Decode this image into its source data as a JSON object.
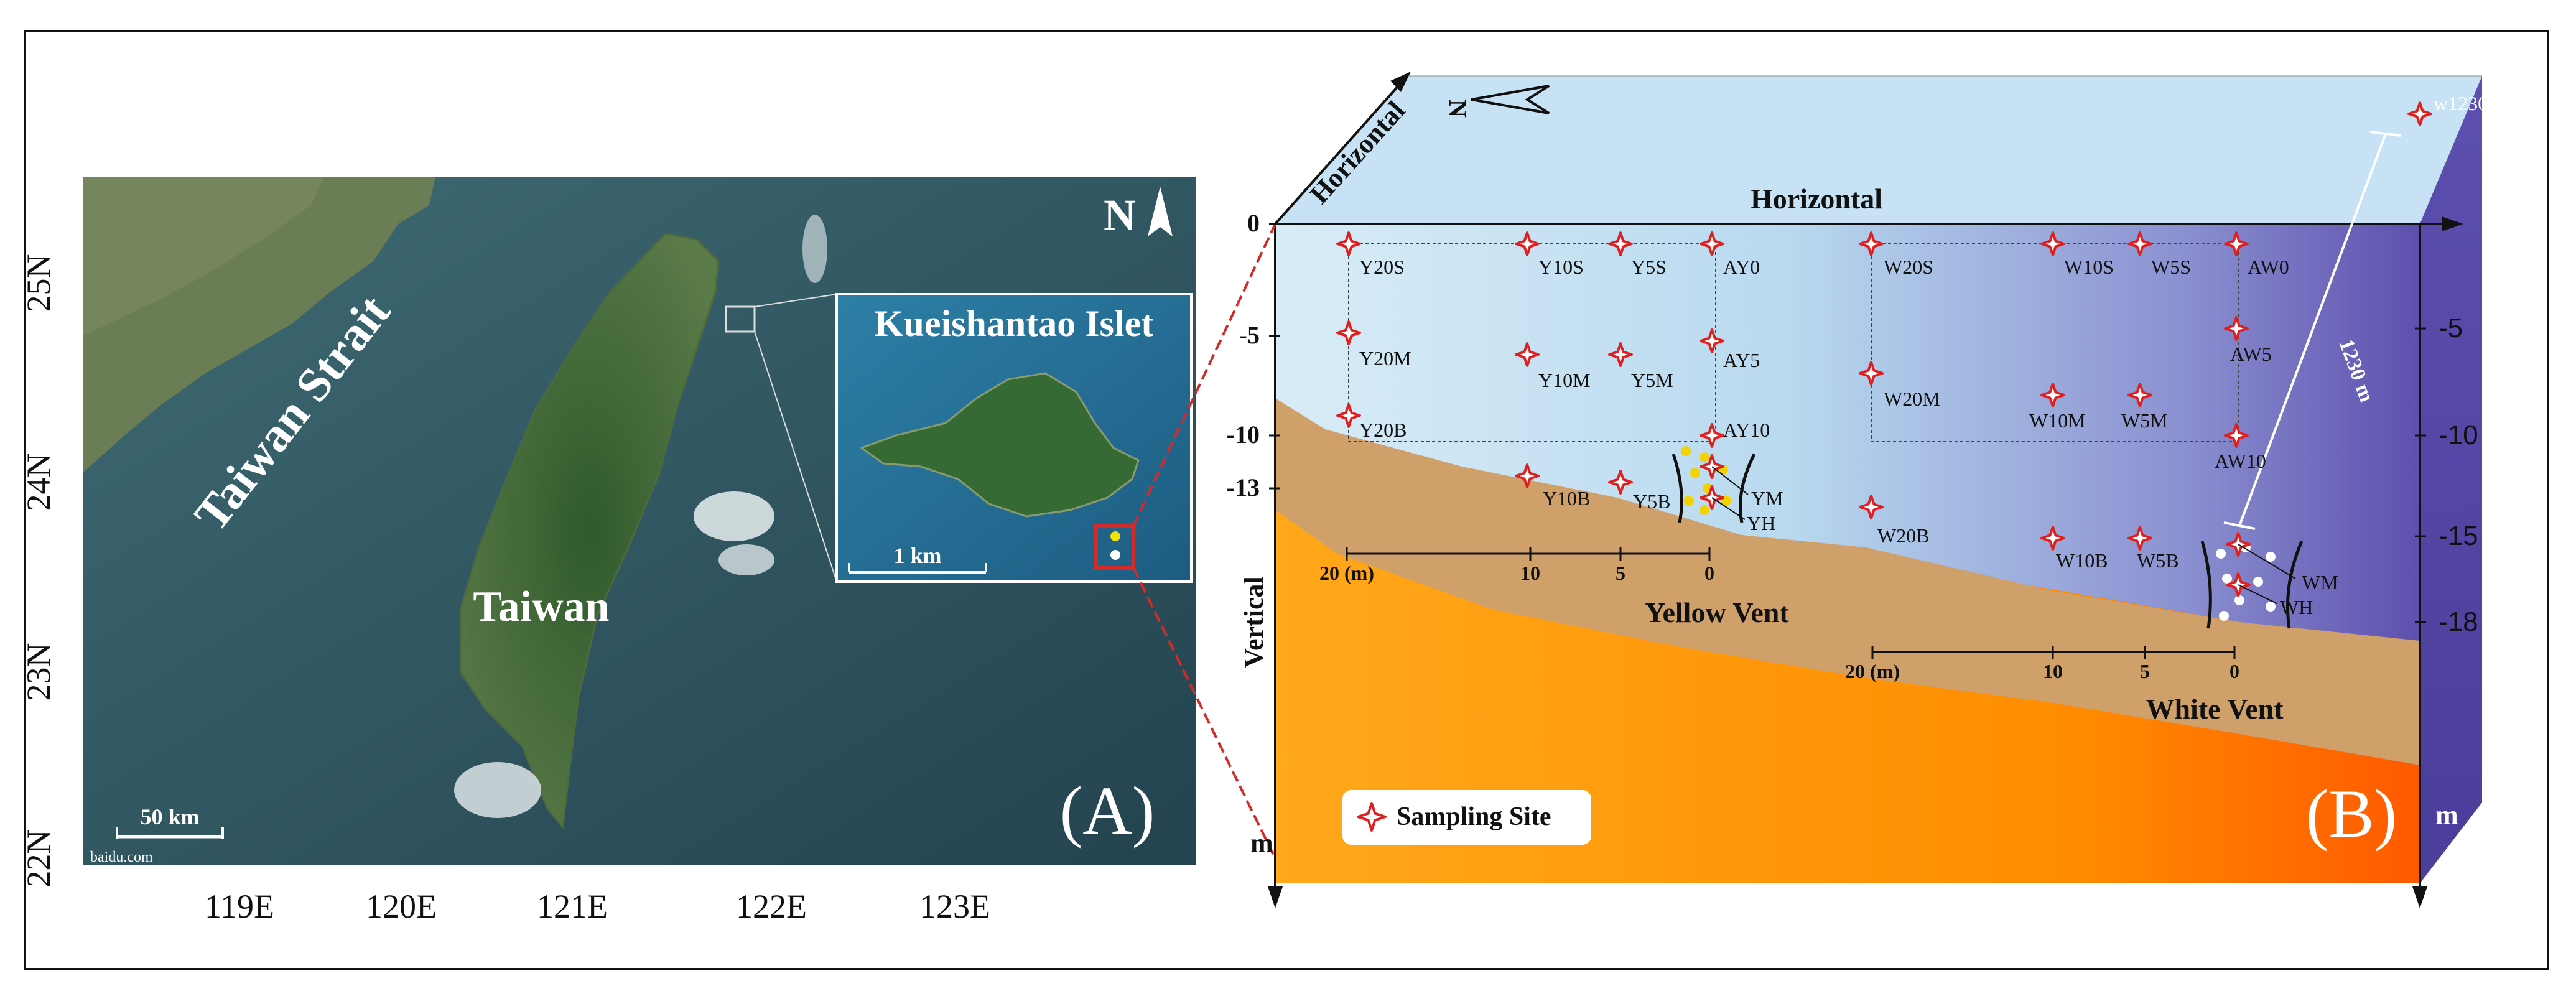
{
  "panel_a": {
    "label": "(A)",
    "north": "N",
    "lat_labels": [
      "25N",
      "24N",
      "23N",
      "22N"
    ],
    "lon_labels": [
      "119E",
      "120E",
      "121E",
      "122E",
      "123E"
    ],
    "strait": "Taiwan Strait",
    "island": "Taiwan",
    "inset_title": "Kueishantao Islet",
    "inset_scale": "1 km",
    "scale": "50 km",
    "source": "baidu.com",
    "colors": {
      "sea": "#2e5561",
      "land": "#3d6a38",
      "frame": "#d42a2a",
      "vent_yellow": "#f2e200"
    }
  },
  "panel_b": {
    "label": "(B)",
    "north": "N",
    "horizontal_axis": "Horizontal",
    "horizontal_diag": "Horizontal",
    "vertical_axis": "Vertical",
    "unit_left": "m",
    "unit_right": "m",
    "left_depths": [
      "0",
      "-5",
      "-10",
      "-13"
    ],
    "right_depths": [
      "-5",
      "-10",
      "-15",
      "-18"
    ],
    "distance_1230": "1230 m",
    "yellow_vent": "Yellow Vent",
    "white_vent": "White Vent",
    "yellow_scale": [
      "20 (m)",
      "10",
      "5",
      "0"
    ],
    "white_scale": [
      "20 (m)",
      "10",
      "5",
      "0"
    ],
    "legend": "Sampling Site",
    "sites": {
      "w1230": "w1230",
      "Y20S": "Y20S",
      "Y10S": "Y10S",
      "Y5S": "Y5S",
      "AY0": "AY0",
      "Y20M": "Y20M",
      "Y10M": "Y10M",
      "Y5M": "Y5M",
      "AY5": "AY5",
      "Y20B": "Y20B",
      "AY10": "AY10",
      "Y10B": "Y10B",
      "Y5B": "Y5B",
      "YM": "YM",
      "YH": "YH",
      "W20S": "W20S",
      "W10S": "W10S",
      "W5S": "W5S",
      "AW0": "AW0",
      "AW5": "AW5",
      "W20M": "W20M",
      "W10M": "W10M",
      "W5M": "W5M",
      "AW10": "AW10",
      "W20B": "W20B",
      "W10B": "W10B",
      "W5B": "W5B",
      "WM": "WM",
      "WH": "WH"
    },
    "colors": {
      "water_top": "#cfe8f5",
      "water_bottom": "#6a5cb0",
      "seabed": "#cfa06a",
      "sediment": "#ff8c00",
      "marker": "#e02020"
    }
  }
}
